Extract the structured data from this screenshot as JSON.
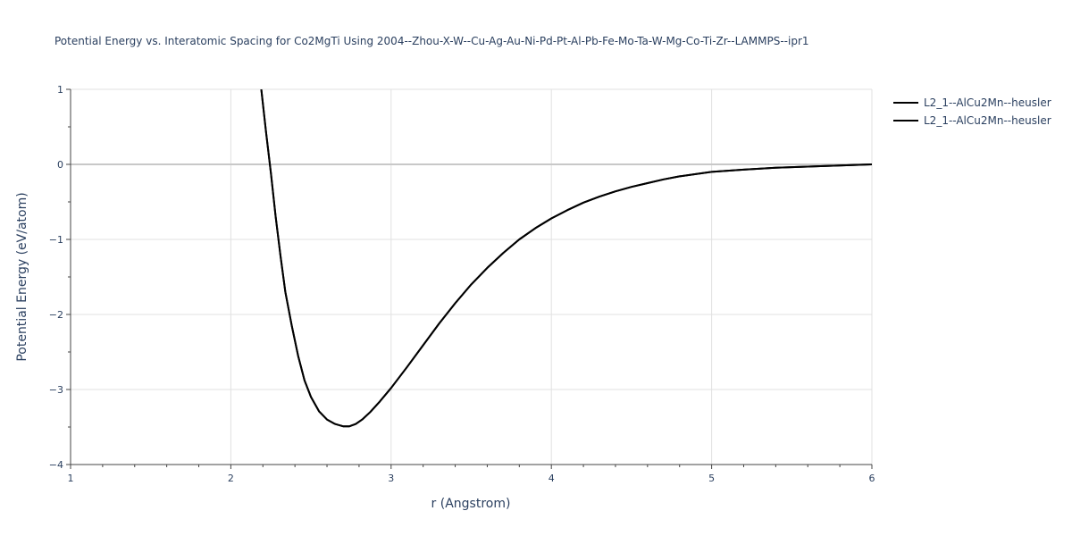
{
  "chart_data": {
    "type": "line",
    "title": "Potential Energy vs. Interatomic Spacing for Co2MgTi Using 2004--Zhou-X-W--Cu-Ag-Au-Ni-Pd-Pt-Al-Pb-Fe-Mo-Ta-W-Mg-Co-Ti-Zr--LAMMPS--ipr1",
    "xlabel": "r (Angstrom)",
    "ylabel": "Potential Energy (eV/atom)",
    "xlim": [
      1,
      6
    ],
    "ylim": [
      -4,
      1
    ],
    "x_ticks": [
      1,
      2,
      3,
      4,
      5,
      6
    ],
    "y_ticks": [
      1,
      0,
      -1,
      -2,
      -3,
      -4
    ],
    "grid": true,
    "legend_position": "top-right",
    "line_color": "#000000",
    "series": [
      {
        "name": "L2_1--AlCu2Mn--heusler",
        "x": [
          2.19,
          2.22,
          2.25,
          2.28,
          2.31,
          2.34,
          2.38,
          2.42,
          2.46,
          2.5,
          2.55,
          2.6,
          2.65,
          2.7,
          2.74,
          2.78,
          2.82,
          2.87,
          2.93,
          3.0,
          3.1,
          3.2,
          3.3,
          3.4,
          3.5,
          3.6,
          3.7,
          3.8,
          3.9,
          4.0,
          4.1,
          4.2,
          4.3,
          4.4,
          4.5,
          4.6,
          4.7,
          4.8,
          4.9,
          5.0,
          5.2,
          5.4,
          5.6,
          5.8,
          6.0
        ],
        "y": [
          1.0,
          0.42,
          -0.12,
          -0.7,
          -1.22,
          -1.7,
          -2.15,
          -2.55,
          -2.88,
          -3.1,
          -3.29,
          -3.4,
          -3.46,
          -3.49,
          -3.49,
          -3.46,
          -3.4,
          -3.3,
          -3.16,
          -2.98,
          -2.7,
          -2.41,
          -2.12,
          -1.85,
          -1.6,
          -1.38,
          -1.18,
          -1.0,
          -0.85,
          -0.72,
          -0.61,
          -0.51,
          -0.43,
          -0.36,
          -0.3,
          -0.25,
          -0.2,
          -0.16,
          -0.13,
          -0.1,
          -0.07,
          -0.045,
          -0.03,
          -0.015,
          0.0
        ]
      },
      {
        "name": "L2_1--AlCu2Mn--heusler",
        "x": [
          2.19,
          2.22,
          2.25,
          2.28,
          2.31,
          2.34,
          2.38,
          2.42,
          2.46,
          2.5,
          2.55,
          2.6,
          2.65,
          2.7,
          2.74,
          2.78,
          2.82,
          2.87,
          2.93,
          3.0,
          3.1,
          3.2,
          3.3,
          3.4,
          3.5,
          3.6,
          3.7,
          3.8,
          3.9,
          4.0,
          4.1,
          4.2,
          4.3,
          4.4,
          4.5,
          4.6,
          4.7,
          4.8,
          4.9,
          5.0,
          5.2,
          5.4,
          5.6,
          5.8,
          6.0
        ],
        "y": [
          1.0,
          0.42,
          -0.12,
          -0.7,
          -1.22,
          -1.7,
          -2.15,
          -2.55,
          -2.88,
          -3.1,
          -3.29,
          -3.4,
          -3.46,
          -3.49,
          -3.49,
          -3.46,
          -3.4,
          -3.3,
          -3.16,
          -2.98,
          -2.7,
          -2.41,
          -2.12,
          -1.85,
          -1.6,
          -1.38,
          -1.18,
          -1.0,
          -0.85,
          -0.72,
          -0.61,
          -0.51,
          -0.43,
          -0.36,
          -0.3,
          -0.25,
          -0.2,
          -0.16,
          -0.13,
          -0.1,
          -0.07,
          -0.045,
          -0.03,
          -0.015,
          0.0
        ]
      }
    ]
  }
}
